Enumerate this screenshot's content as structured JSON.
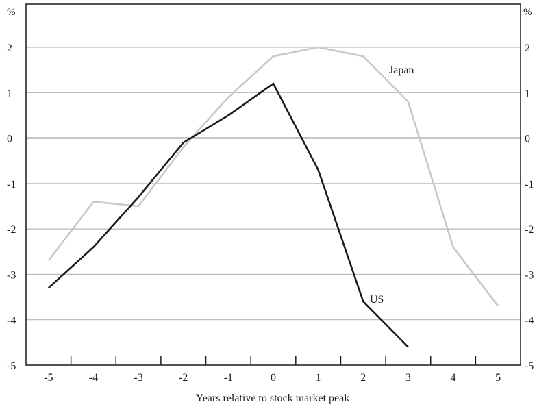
{
  "chart_data": {
    "type": "line",
    "title": "",
    "xlabel": "Years relative to stock market peak",
    "ylabel": "%",
    "ylabel_right": "%",
    "x": [
      -5,
      -4,
      -3,
      -2,
      -1,
      0,
      1,
      2,
      3,
      4,
      5
    ],
    "xlim": [
      -5.5,
      5.5
    ],
    "ylim": [
      -5,
      2.95
    ],
    "yticks": [
      -5,
      -4,
      -3,
      -2,
      -1,
      0,
      1,
      2
    ],
    "grid": true,
    "legend": "inline labels",
    "series": [
      {
        "name": "Japan",
        "color": "#c8c8c8",
        "x": [
          -5,
          -4,
          -3,
          -2,
          -1,
          0,
          1,
          2,
          3,
          4,
          5
        ],
        "values": [
          -2.7,
          -1.4,
          -1.5,
          -0.2,
          0.9,
          1.8,
          2.0,
          1.8,
          0.8,
          -2.4,
          -3.7
        ]
      },
      {
        "name": "US",
        "color": "#1a1a1a",
        "x": [
          -5,
          -4,
          -3,
          -2,
          -1,
          0,
          1,
          2,
          3
        ],
        "values": [
          -3.3,
          -2.4,
          -1.3,
          -0.1,
          0.5,
          1.2,
          -0.7,
          -3.6,
          -4.6
        ]
      }
    ]
  }
}
